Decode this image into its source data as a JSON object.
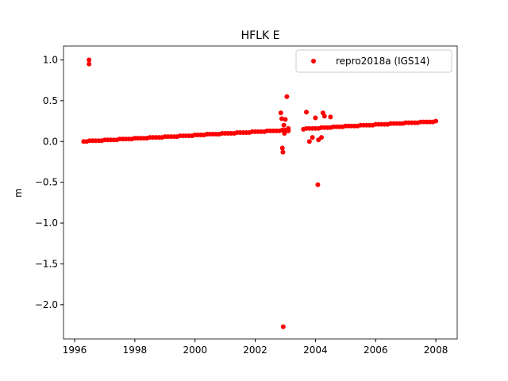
{
  "chart_data": {
    "type": "scatter",
    "title": "HFLK E",
    "y_label": "m",
    "xlim": [
      1995.63,
      2008.71
    ],
    "ylim": [
      -2.42,
      1.17
    ],
    "xticks": [
      1996,
      1998,
      2000,
      2002,
      2004,
      2006,
      2008
    ],
    "yticks": [
      {
        "value": -2.0,
        "label": "−2.0"
      },
      {
        "value": -1.5,
        "label": "−1.5"
      },
      {
        "value": -1.0,
        "label": "−1.0"
      },
      {
        "value": -0.5,
        "label": "−0.5"
      },
      {
        "value": 0,
        "label": "0.0"
      },
      0.5,
      {
        "value": 1.0,
        "label": "1.0"
      }
    ],
    "legend": "upper right",
    "series": [
      {
        "name": "repro2018a (IGS14)",
        "color": "#ff0000",
        "x": [
          1996.3,
          1996.4,
          1996.5,
          1996.6,
          1996.7,
          1996.8,
          1996.9,
          1997.0,
          1997.1,
          1997.2,
          1997.3,
          1997.4,
          1997.5,
          1997.6,
          1997.7,
          1997.8,
          1997.9,
          1998.0,
          1998.1,
          1998.2,
          1998.3,
          1998.4,
          1998.5,
          1998.6,
          1998.7,
          1998.8,
          1998.9,
          1999.0,
          1999.1,
          1999.2,
          1999.3,
          1999.4,
          1999.5,
          1999.6,
          1999.7,
          1999.8,
          1999.9,
          2000.0,
          2000.1,
          2000.2,
          2000.3,
          2000.4,
          2000.5,
          2000.6,
          2000.7,
          2000.8,
          2000.9,
          2001.0,
          2001.1,
          2001.2,
          2001.3,
          2001.4,
          2001.5,
          2001.6,
          2001.7,
          2001.8,
          2001.9,
          2002.0,
          2002.1,
          2002.2,
          2002.3,
          2002.4,
          2002.5,
          2002.6,
          2002.7,
          2002.8,
          2002.85,
          2002.88,
          2002.9,
          2002.92,
          2002.95,
          2002.97,
          2003.0,
          2003.05,
          2003.1,
          2002.93,
          2002.9,
          2003.0,
          2003.1,
          1996.48,
          1996.48,
          2004.08,
          2003.7,
          2003.8,
          2004.0,
          2004.25,
          2004.3,
          2004.5,
          2003.9,
          2004.1,
          2004.2,
          2003.6,
          2003.7,
          2003.8,
          2003.9,
          2004.0,
          2004.1,
          2004.2,
          2004.3,
          2004.4,
          2004.5,
          2004.6,
          2004.7,
          2004.8,
          2004.9,
          2005.0,
          2005.1,
          2005.2,
          2005.3,
          2005.4,
          2005.5,
          2005.6,
          2005.7,
          2005.8,
          2005.9,
          2006.0,
          2006.1,
          2006.2,
          2006.3,
          2006.4,
          2006.5,
          2006.6,
          2006.7,
          2006.8,
          2006.9,
          2007.0,
          2007.1,
          2007.2,
          2007.3,
          2007.4,
          2007.5,
          2007.6,
          2007.7,
          2007.8,
          2007.9,
          2008.0
        ],
        "values": [
          0.0,
          0.0,
          0.01,
          0.01,
          0.01,
          0.01,
          0.01,
          0.02,
          0.02,
          0.02,
          0.02,
          0.02,
          0.03,
          0.03,
          0.03,
          0.03,
          0.03,
          0.04,
          0.04,
          0.04,
          0.04,
          0.04,
          0.05,
          0.05,
          0.05,
          0.05,
          0.05,
          0.06,
          0.06,
          0.06,
          0.06,
          0.06,
          0.07,
          0.07,
          0.07,
          0.07,
          0.07,
          0.08,
          0.08,
          0.08,
          0.08,
          0.09,
          0.09,
          0.09,
          0.09,
          0.09,
          0.1,
          0.1,
          0.1,
          0.1,
          0.1,
          0.11,
          0.11,
          0.11,
          0.11,
          0.11,
          0.12,
          0.12,
          0.12,
          0.12,
          0.12,
          0.13,
          0.13,
          0.13,
          0.13,
          0.13,
          0.35,
          0.28,
          -0.08,
          -0.13,
          0.2,
          0.1,
          0.27,
          0.55,
          0.16,
          -2.27,
          0.14,
          0.14,
          0.13,
          1.0,
          0.95,
          -0.53,
          0.36,
          0.0,
          0.29,
          0.35,
          0.31,
          0.3,
          0.05,
          0.02,
          0.05,
          0.15,
          0.16,
          0.16,
          0.16,
          0.16,
          0.16,
          0.17,
          0.17,
          0.17,
          0.17,
          0.18,
          0.18,
          0.18,
          0.18,
          0.19,
          0.19,
          0.19,
          0.19,
          0.19,
          0.2,
          0.2,
          0.2,
          0.2,
          0.2,
          0.21,
          0.21,
          0.21,
          0.21,
          0.21,
          0.22,
          0.22,
          0.22,
          0.22,
          0.22,
          0.23,
          0.23,
          0.23,
          0.23,
          0.23,
          0.24,
          0.24,
          0.24,
          0.24,
          0.24,
          0.25
        ]
      }
    ]
  }
}
